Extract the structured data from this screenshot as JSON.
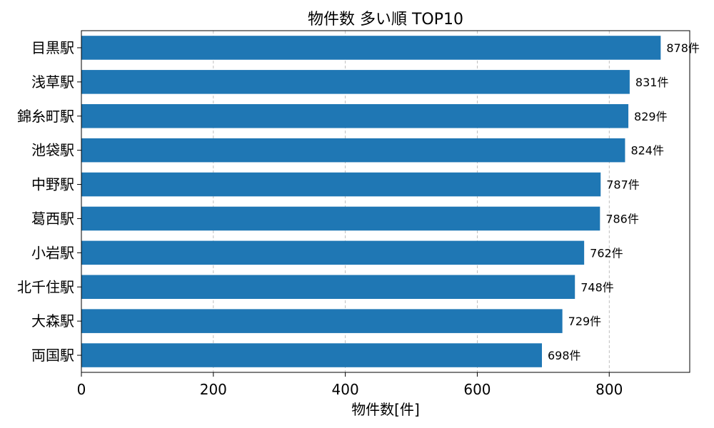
{
  "chart_data": {
    "type": "bar",
    "orientation": "horizontal",
    "title": "物件数 多い順 TOP10",
    "xlabel": "物件数[件]",
    "ylabel": "",
    "categories": [
      "目黒駅",
      "浅草駅",
      "錦糸町駅",
      "池袋駅",
      "中野駅",
      "葛西駅",
      "小岩駅",
      "北千住駅",
      "大森駅",
      "両国駅"
    ],
    "values": [
      878,
      831,
      829,
      824,
      787,
      786,
      762,
      748,
      729,
      698
    ],
    "data_labels": [
      "878件",
      "831件",
      "829件",
      "824件",
      "787件",
      "786件",
      "762件",
      "748件",
      "729件",
      "698件"
    ],
    "xlim": [
      0,
      922
    ],
    "xticks": [
      0,
      200,
      400,
      600,
      800
    ],
    "xtick_labels": [
      "0",
      "200",
      "400",
      "600",
      "800"
    ],
    "grid": "x",
    "bar_color": "#1f77b4"
  }
}
